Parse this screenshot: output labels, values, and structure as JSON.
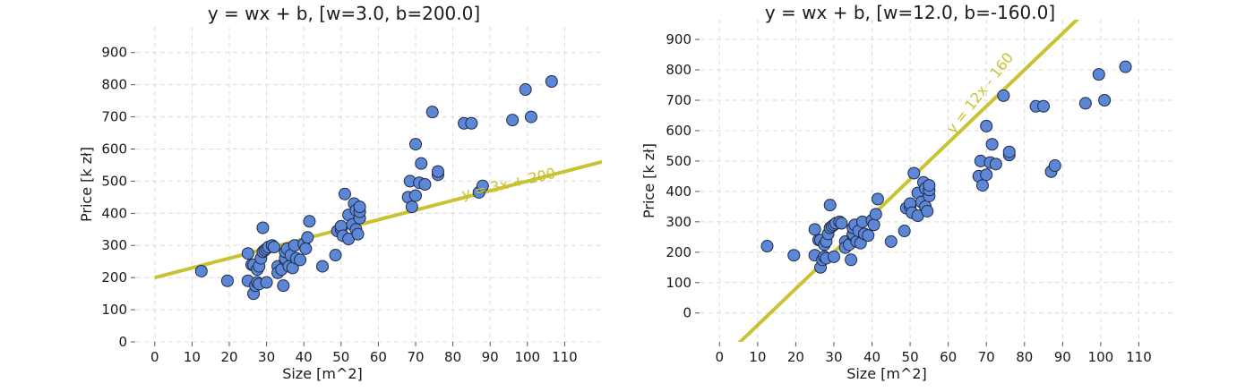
{
  "colors": {
    "point_fill": "#5b87d6",
    "line": "#c9c231",
    "annotation": "#c9c231",
    "grid": "#dcdcdc",
    "text": "#1a1a1a"
  },
  "points": [
    [
      12.5,
      220
    ],
    [
      19.5,
      190
    ],
    [
      25,
      275
    ],
    [
      25,
      190
    ],
    [
      26,
      240
    ],
    [
      26.5,
      150
    ],
    [
      26.5,
      240
    ],
    [
      27,
      175
    ],
    [
      27.5,
      225
    ],
    [
      27.5,
      185
    ],
    [
      28,
      235
    ],
    [
      28,
      180
    ],
    [
      28.5,
      260
    ],
    [
      29,
      355
    ],
    [
      29,
      280
    ],
    [
      29.5,
      285
    ],
    [
      30,
      185
    ],
    [
      30,
      290
    ],
    [
      30.5,
      295
    ],
    [
      31.5,
      300
    ],
    [
      32,
      295
    ],
    [
      33,
      235
    ],
    [
      33,
      215
    ],
    [
      34,
      225
    ],
    [
      34.5,
      175
    ],
    [
      35,
      255
    ],
    [
      35,
      260
    ],
    [
      35,
      280
    ],
    [
      35.5,
      290
    ],
    [
      36,
      235
    ],
    [
      36.5,
      270
    ],
    [
      37,
      230
    ],
    [
      37.5,
      300
    ],
    [
      38,
      260
    ],
    [
      39,
      255
    ],
    [
      40,
      305
    ],
    [
      40.5,
      290
    ],
    [
      41,
      325
    ],
    [
      41.5,
      375
    ],
    [
      45,
      235
    ],
    [
      48.5,
      270
    ],
    [
      49,
      345
    ],
    [
      50,
      350
    ],
    [
      50,
      360
    ],
    [
      50.5,
      330
    ],
    [
      51,
      460
    ],
    [
      52,
      320
    ],
    [
      52,
      395
    ],
    [
      53,
      365
    ],
    [
      53.5,
      430
    ],
    [
      54,
      350
    ],
    [
      54,
      410
    ],
    [
      54.5,
      335
    ],
    [
      55,
      385
    ],
    [
      55,
      405
    ],
    [
      55,
      420
    ],
    [
      68,
      450
    ],
    [
      68.5,
      500
    ],
    [
      69,
      420
    ],
    [
      70,
      455
    ],
    [
      70,
      615
    ],
    [
      71,
      495
    ],
    [
      71.5,
      555
    ],
    [
      72.5,
      490
    ],
    [
      74.5,
      715
    ],
    [
      76,
      520
    ],
    [
      76,
      530
    ],
    [
      83,
      680
    ],
    [
      85,
      680
    ],
    [
      87,
      465
    ],
    [
      88,
      485
    ],
    [
      96,
      690
    ],
    [
      99.5,
      785
    ],
    [
      101,
      700
    ],
    [
      106.5,
      810
    ]
  ],
  "chart_data": [
    {
      "type": "scatter",
      "title": "y = wx + b, [w=3.0, b=200.0]",
      "xlabel": "Size [m^2]",
      "ylabel": "Price [k zł]",
      "xlim": [
        -5,
        120
      ],
      "ylim": [
        0,
        980
      ],
      "xticks": [
        0,
        10,
        20,
        30,
        40,
        50,
        60,
        70,
        80,
        90,
        100,
        110
      ],
      "yticks": [
        0,
        100,
        200,
        300,
        400,
        500,
        600,
        700,
        800,
        900
      ],
      "grid": true,
      "line": {
        "w": 3.0,
        "b": 200.0,
        "x_range": [
          0,
          120
        ]
      },
      "annotation": {
        "text": "y = 3x + 200",
        "x": 95,
        "y": 490
      }
    },
    {
      "type": "scatter",
      "title": "y = wx + b, [w=12.0, b=-160.0]",
      "xlabel": "Size [m^2]",
      "ylabel": "Price [k zł]",
      "xlim": [
        -5,
        120
      ],
      "ylim": [
        -95,
        965
      ],
      "xticks": [
        0,
        10,
        20,
        30,
        40,
        50,
        60,
        70,
        80,
        90,
        100,
        110
      ],
      "yticks": [
        0,
        100,
        200,
        300,
        400,
        500,
        600,
        700,
        800,
        900
      ],
      "grid": true,
      "line": {
        "w": 12.0,
        "b": -160.0,
        "x_range": [
          0,
          120
        ]
      },
      "annotation": {
        "text": "y = 12x - 160",
        "x": 68.5,
        "y": 722
      }
    }
  ]
}
